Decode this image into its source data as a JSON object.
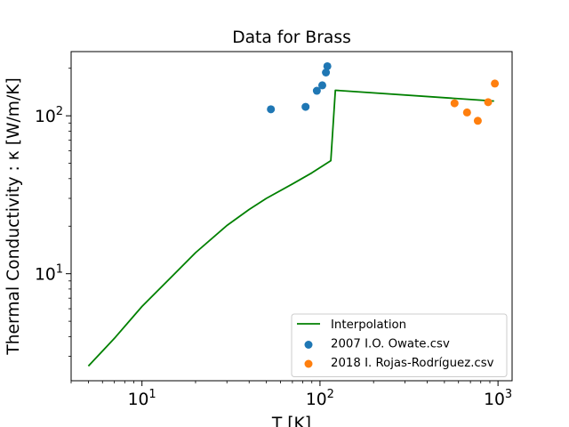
{
  "chart_data": {
    "type": "scatter",
    "title": "Data for Brass",
    "xlabel": "T [K]",
    "ylabel": "Thermal Conductivity : κ [W/m/K]",
    "xscale": "log",
    "yscale": "log",
    "xlim": [
      4,
      1200
    ],
    "ylim": [
      2.1,
      255
    ],
    "grid": false,
    "legend_position": "lower-right",
    "x_ticks": [
      {
        "value": 10,
        "base": "10",
        "exp": "1"
      },
      {
        "value": 100,
        "base": "10",
        "exp": "2"
      },
      {
        "value": 1000,
        "base": "10",
        "exp": "3"
      }
    ],
    "y_ticks": [
      {
        "value": 10,
        "base": "10",
        "exp": "1"
      },
      {
        "value": 100,
        "base": "10",
        "exp": "2"
      }
    ],
    "series": [
      {
        "name": "Interpolation",
        "kind": "line",
        "color": "#008000",
        "points": [
          [
            5,
            2.6
          ],
          [
            7,
            3.9
          ],
          [
            10,
            6.2
          ],
          [
            15,
            9.8
          ],
          [
            20,
            13.6
          ],
          [
            30,
            20.2
          ],
          [
            40,
            25.5
          ],
          [
            50,
            30
          ],
          [
            70,
            37
          ],
          [
            90,
            43.5
          ],
          [
            115,
            52
          ],
          [
            122,
            145
          ],
          [
            950,
            124
          ]
        ]
      },
      {
        "name": "2007 I.O. Owate.csv",
        "kind": "scatter",
        "color": "#1f77b4",
        "points": [
          [
            53,
            110
          ],
          [
            83,
            114
          ],
          [
            96,
            144
          ],
          [
            103,
            156
          ],
          [
            108,
            188
          ],
          [
            110,
            206
          ]
        ]
      },
      {
        "name": "2018 I. Rojas-Rodríguez.csv",
        "kind": "scatter",
        "color": "#ff7f0e",
        "points": [
          [
            570,
            120
          ],
          [
            670,
            105
          ],
          [
            770,
            93
          ],
          [
            880,
            122
          ],
          [
            960,
            160
          ]
        ]
      }
    ]
  }
}
